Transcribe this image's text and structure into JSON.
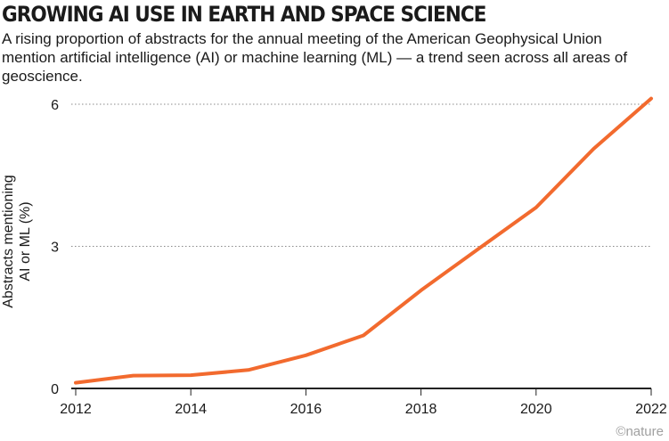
{
  "title": "GROWING AI USE IN EARTH AND SPACE SCIENCE",
  "subtitle": "A rising proportion of abstracts for the annual meeting of the American Geophysical Union mention artificial intelligence (AI) or machine learning (ML) — a trend seen across all areas of geoscience.",
  "credit": "©nature",
  "colors": {
    "line": "#f26a2e",
    "grid": "#8a8a8a",
    "axis": "#222222",
    "text": "#1a1a1a"
  },
  "chart_data": {
    "type": "line",
    "title": "GROWING AI USE IN EARTH AND SPACE SCIENCE",
    "ylabel": "Abstracts mentioning AI or ML (%)",
    "ylabel_lines": [
      "Abstracts mentioning",
      "AI or ML (%)"
    ],
    "xlabel": "",
    "xlim": [
      2012,
      2022
    ],
    "ylim": [
      0,
      6
    ],
    "xticks": [
      2012,
      2014,
      2016,
      2018,
      2020,
      2022
    ],
    "yticks": [
      0,
      3,
      6
    ],
    "grid": "horizontal dotted at y ticks",
    "series": [
      {
        "x": [
          2012,
          2013,
          2014,
          2015,
          2016,
          2017,
          2018,
          2019,
          2020,
          2021,
          2022
        ],
        "y": [
          0.12,
          0.27,
          0.28,
          0.39,
          0.7,
          1.12,
          2.07,
          2.95,
          3.82,
          5.06,
          6.12
        ]
      }
    ]
  }
}
